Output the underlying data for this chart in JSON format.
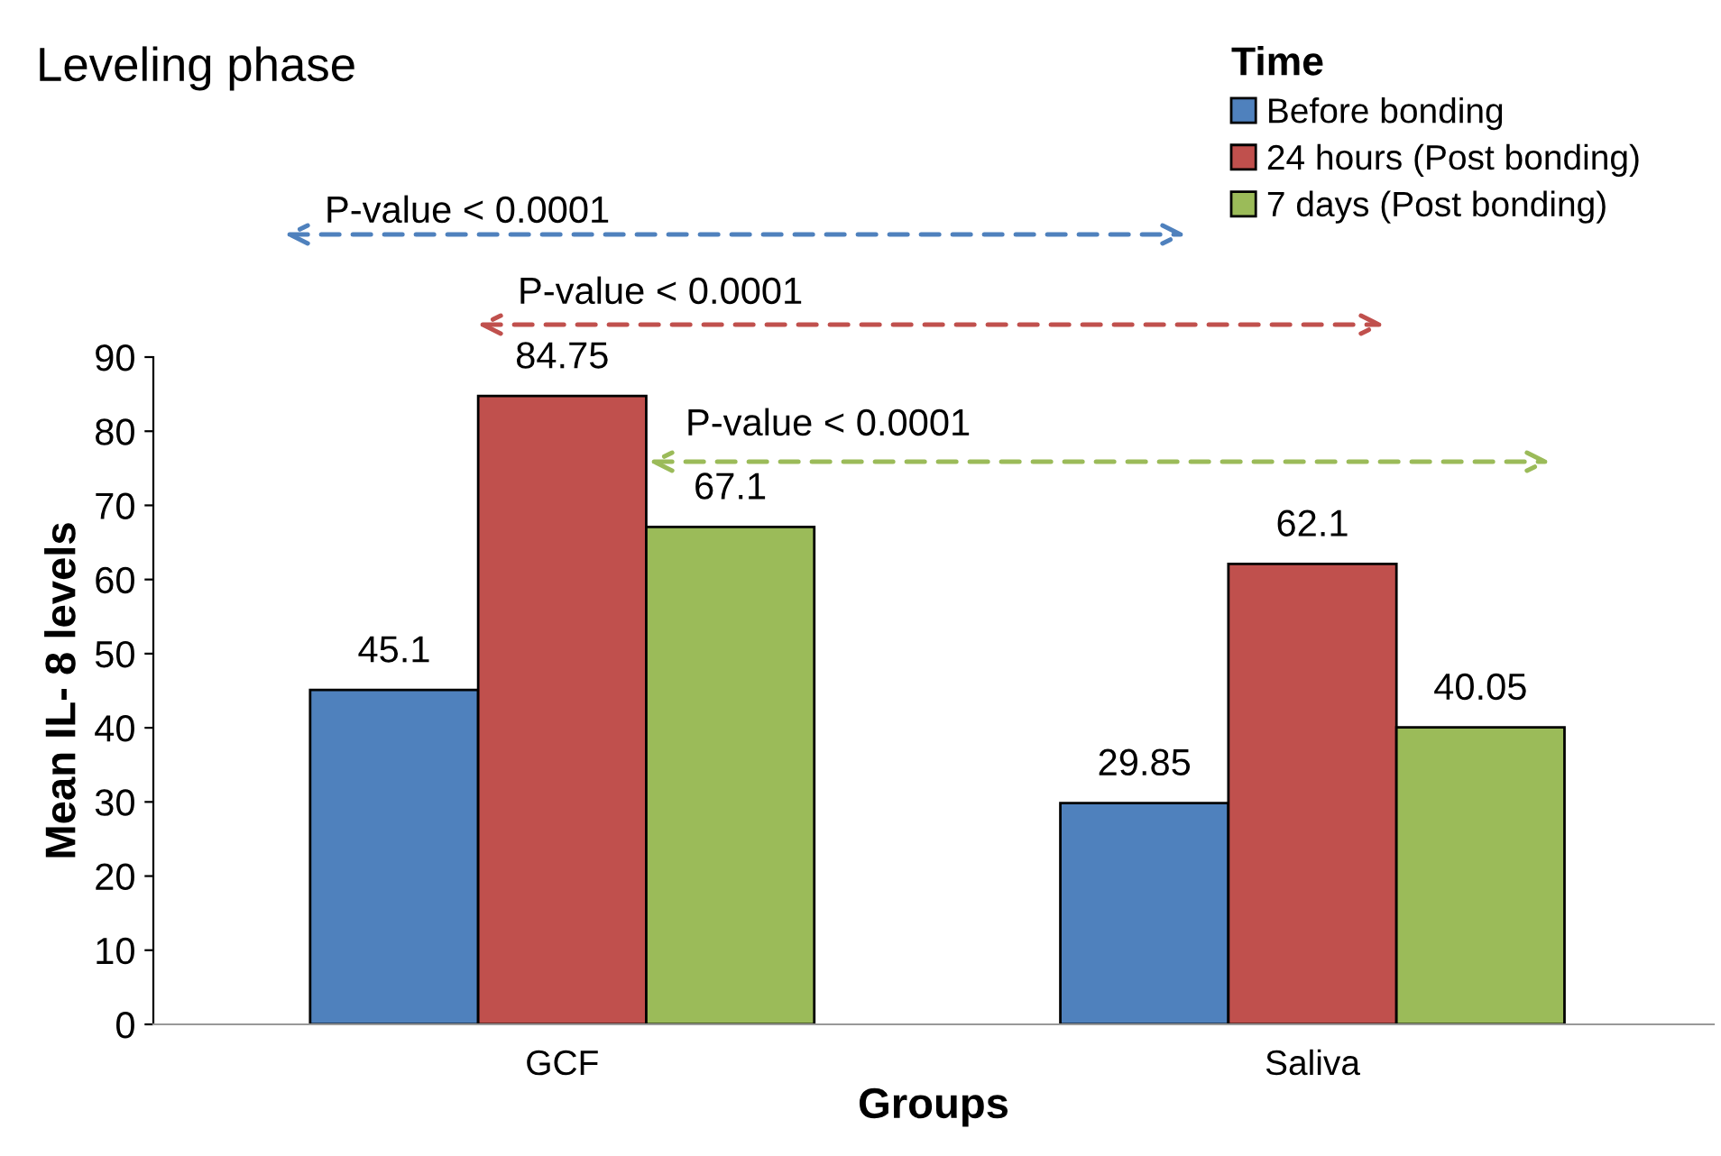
{
  "chart_data": {
    "type": "bar",
    "title": "Leveling phase",
    "xlabel": "Groups",
    "ylabel": "Mean IL- 8 levels",
    "legend_title": "Time",
    "categories": [
      "GCF",
      "Saliva"
    ],
    "series": [
      {
        "name": "Before bonding",
        "color": "#4f81bd",
        "values": [
          45.1,
          29.85
        ]
      },
      {
        "name": "24 hours (Post bonding)",
        "color": "#c0504d",
        "values": [
          84.75,
          62.1
        ]
      },
      {
        "name": "7 days (Post bonding)",
        "color": "#9bbb59",
        "values": [
          67.1,
          40.05
        ]
      }
    ],
    "ylim": [
      0,
      90
    ],
    "yticks": [
      0,
      10,
      20,
      30,
      40,
      50,
      60,
      70,
      80,
      90
    ],
    "data_labels": true,
    "legend": "top right",
    "grid": false,
    "annotations": [
      "P-value < 0.0001",
      "P-value < 0.0001",
      "P-value < 0.0001"
    ]
  }
}
